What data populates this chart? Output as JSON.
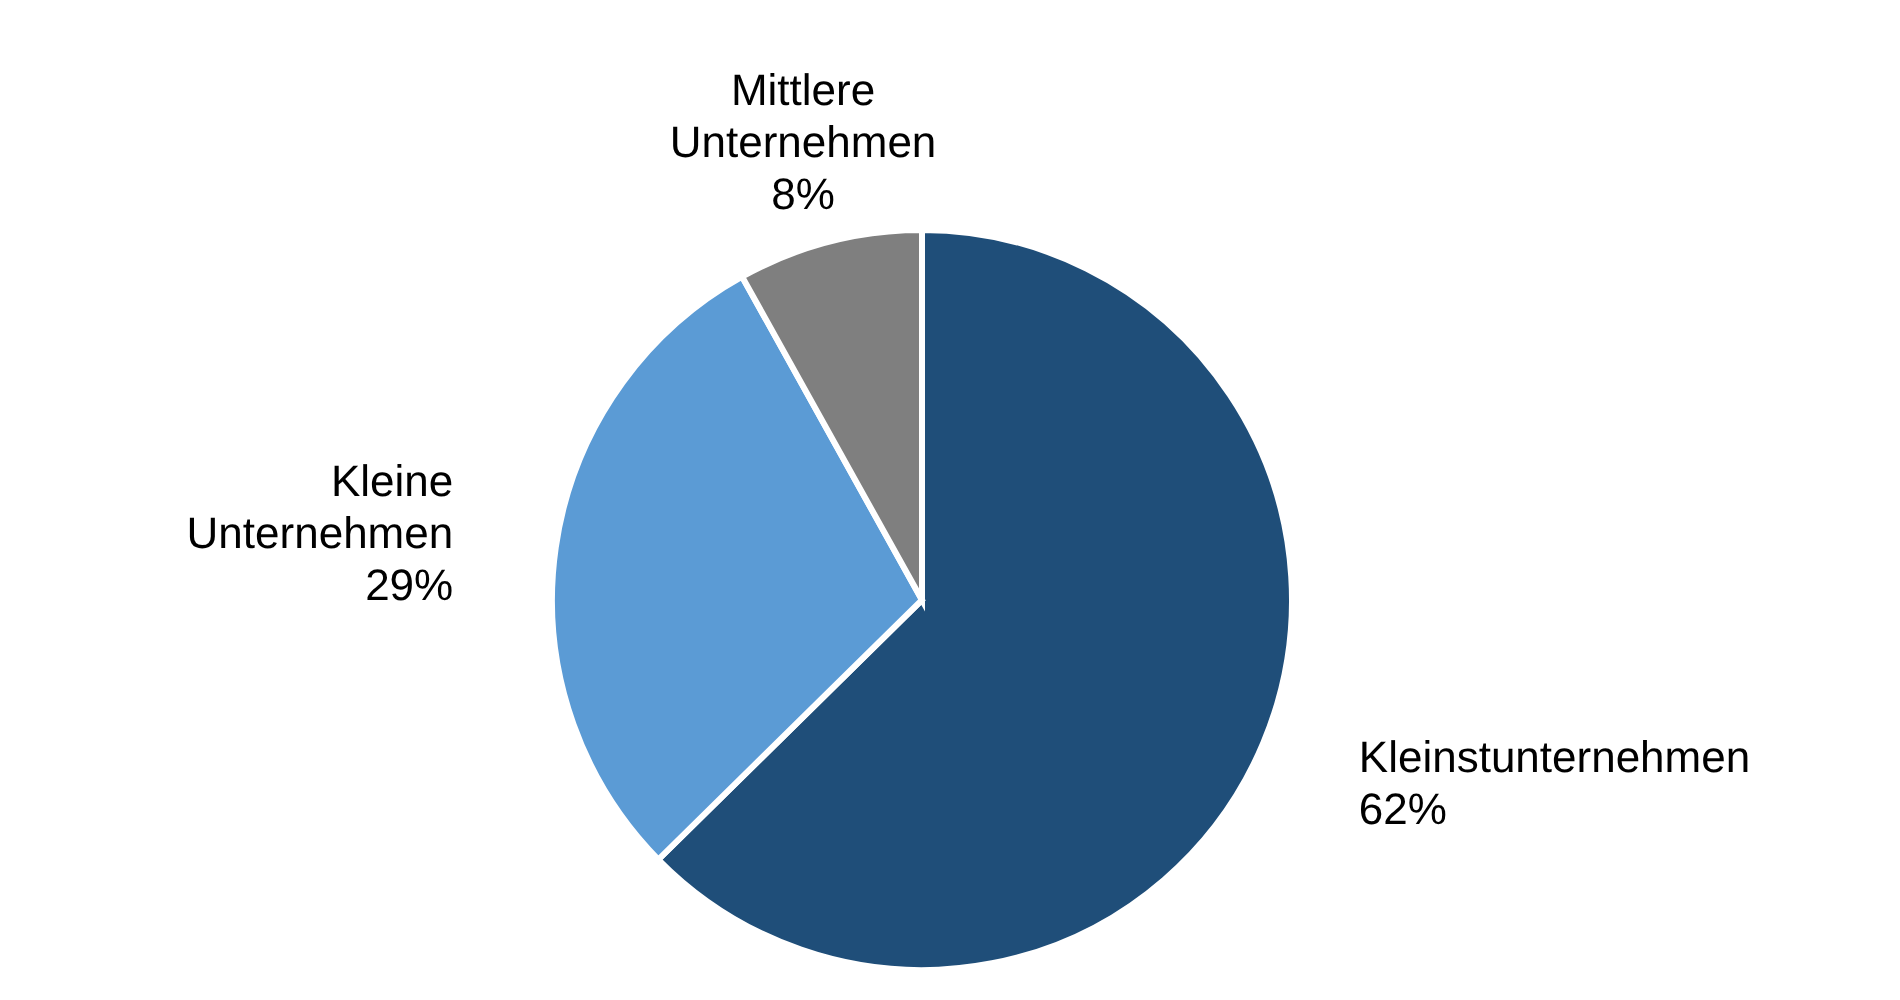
{
  "chart_data": {
    "type": "pie",
    "categories": [
      "Kleinstunternehmen",
      "Kleine Unternehmen",
      "Mittlere Unternehmen"
    ],
    "values": [
      62,
      29,
      8
    ],
    "value_labels": [
      "62%",
      "29%",
      "8%"
    ],
    "colors": [
      "#1f4e79",
      "#5b9bd5",
      "#7f7f7f"
    ]
  }
}
